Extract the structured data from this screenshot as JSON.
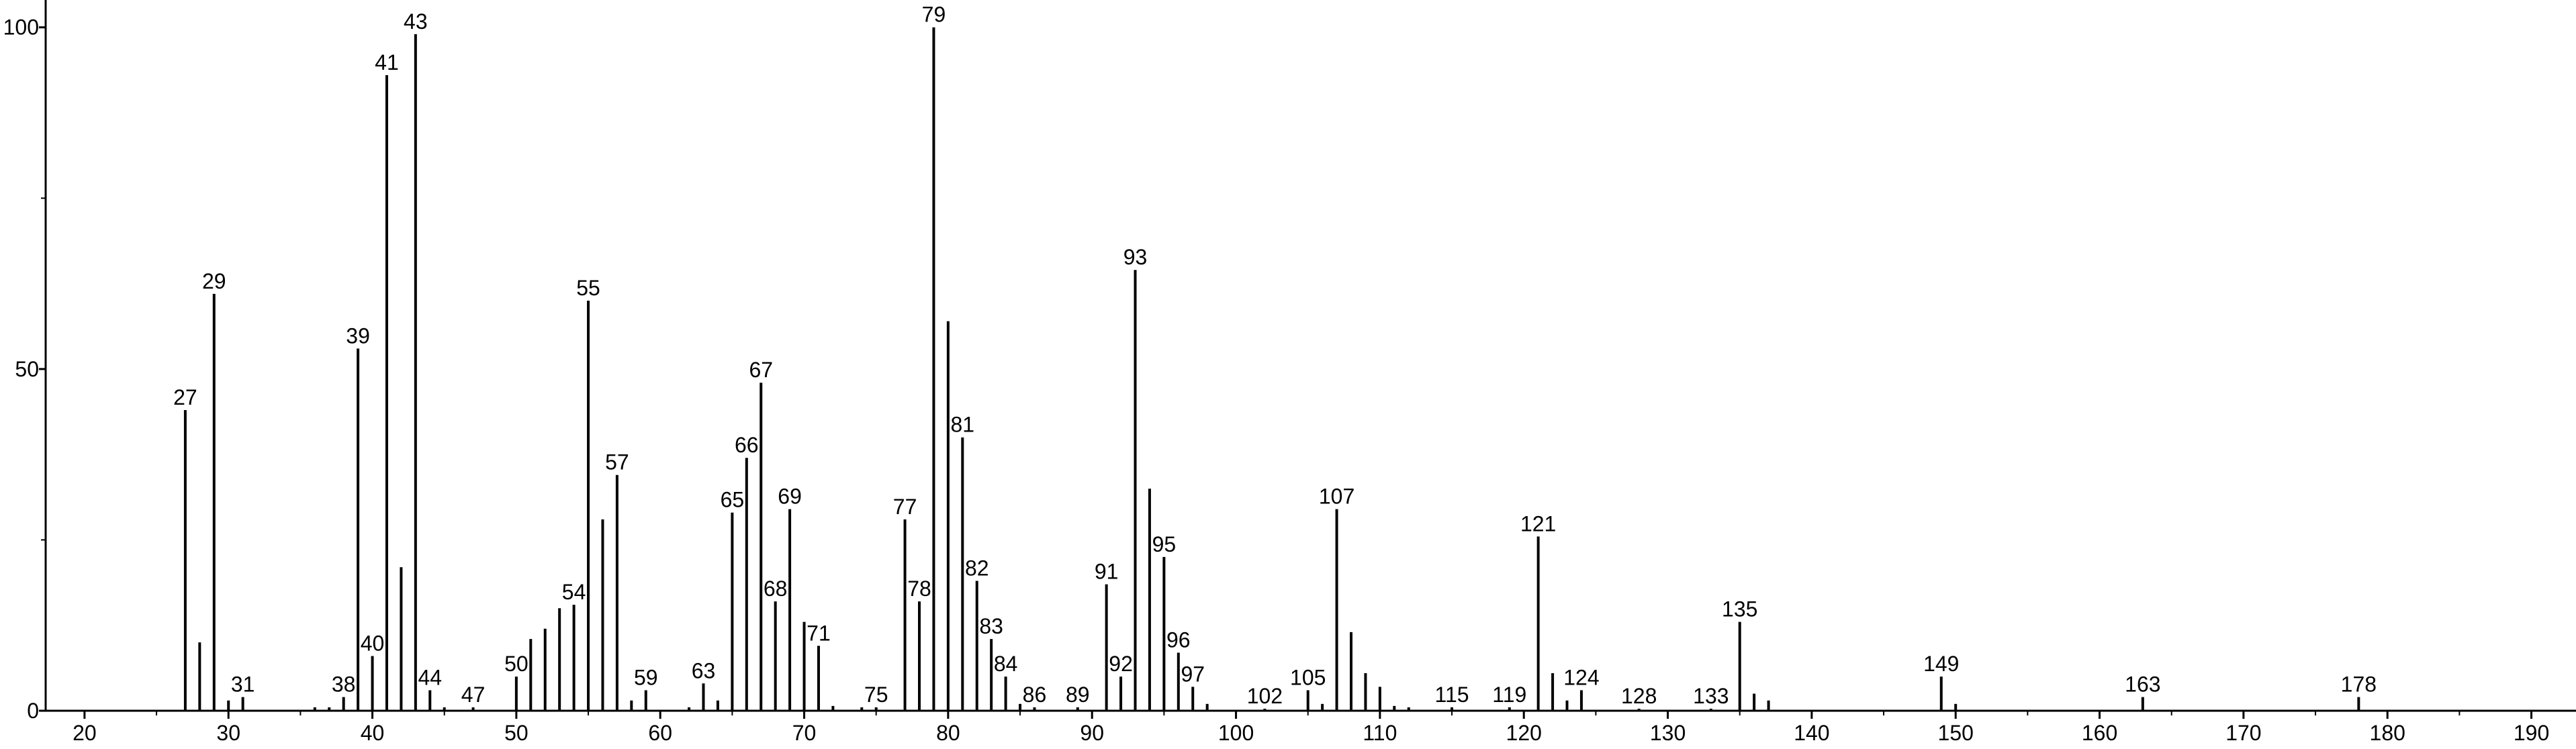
{
  "chart_data": {
    "type": "stick",
    "color": "#000000",
    "xlim": [
      17.3,
      193.1
    ],
    "ylim": [
      0,
      104
    ],
    "xticks": [
      20,
      30,
      40,
      50,
      60,
      70,
      80,
      90,
      100,
      110,
      120,
      130,
      140,
      150,
      160,
      170,
      180,
      190
    ],
    "x_minor_ticks": [
      25,
      35,
      45,
      55,
      65,
      75,
      85,
      95,
      105,
      115,
      125,
      135,
      145,
      155,
      165,
      175,
      185
    ],
    "yticks": [
      0,
      50,
      100
    ],
    "y_minor_ticks": [
      25,
      75
    ],
    "x": [
      27,
      28,
      29,
      30,
      31,
      36,
      37,
      38,
      39,
      40,
      41,
      42,
      43,
      44,
      45,
      47,
      50,
      51,
      52,
      53,
      54,
      55,
      56,
      57,
      58,
      59,
      62,
      63,
      64,
      65,
      66,
      67,
      68,
      69,
      70,
      71,
      72,
      74,
      75,
      77,
      78,
      79,
      80,
      81,
      82,
      83,
      84,
      85,
      86,
      89,
      91,
      92,
      93,
      94,
      95,
      96,
      97,
      98,
      102,
      105,
      106,
      107,
      108,
      109,
      110,
      111,
      112,
      115,
      119,
      121,
      122,
      123,
      124,
      128,
      133,
      135,
      136,
      137,
      149,
      150,
      163,
      178
    ],
    "values": [
      44,
      10,
      61,
      1.5,
      2,
      0.5,
      0.5,
      2,
      53,
      8,
      93,
      21,
      99,
      3,
      0.5,
      0.5,
      5,
      10.5,
      12,
      15,
      15.5,
      60,
      28,
      34.5,
      1.5,
      3,
      0.5,
      4,
      1.5,
      29,
      37,
      48,
      16,
      29.5,
      13,
      9.5,
      0.7,
      0.5,
      0.5,
      28,
      16,
      100,
      57,
      40,
      19,
      10.5,
      5,
      1,
      0.5,
      0.5,
      18.5,
      5,
      64.5,
      32.5,
      22.5,
      8.5,
      3.5,
      1,
      0.3,
      3,
      1,
      29.5,
      11.5,
      5.5,
      3.5,
      0.7,
      0.5,
      0.5,
      0.5,
      25.5,
      5.5,
      1.5,
      3,
      0.3,
      0.3,
      13,
      2.5,
      1.5,
      5,
      1,
      2,
      2
    ],
    "peak_labels": [
      27,
      null,
      29,
      null,
      31,
      null,
      null,
      38,
      39,
      40,
      41,
      null,
      43,
      44,
      null,
      47,
      50,
      null,
      null,
      null,
      54,
      55,
      null,
      57,
      null,
      59,
      null,
      63,
      null,
      65,
      66,
      67,
      68,
      69,
      null,
      71,
      null,
      null,
      75,
      77,
      78,
      79,
      null,
      81,
      82,
      83,
      84,
      null,
      86,
      89,
      91,
      92,
      93,
      null,
      95,
      96,
      97,
      null,
      102,
      105,
      null,
      107,
      null,
      null,
      null,
      null,
      null,
      115,
      119,
      121,
      null,
      null,
      124,
      128,
      133,
      135,
      null,
      null,
      149,
      null,
      163,
      178
    ]
  }
}
